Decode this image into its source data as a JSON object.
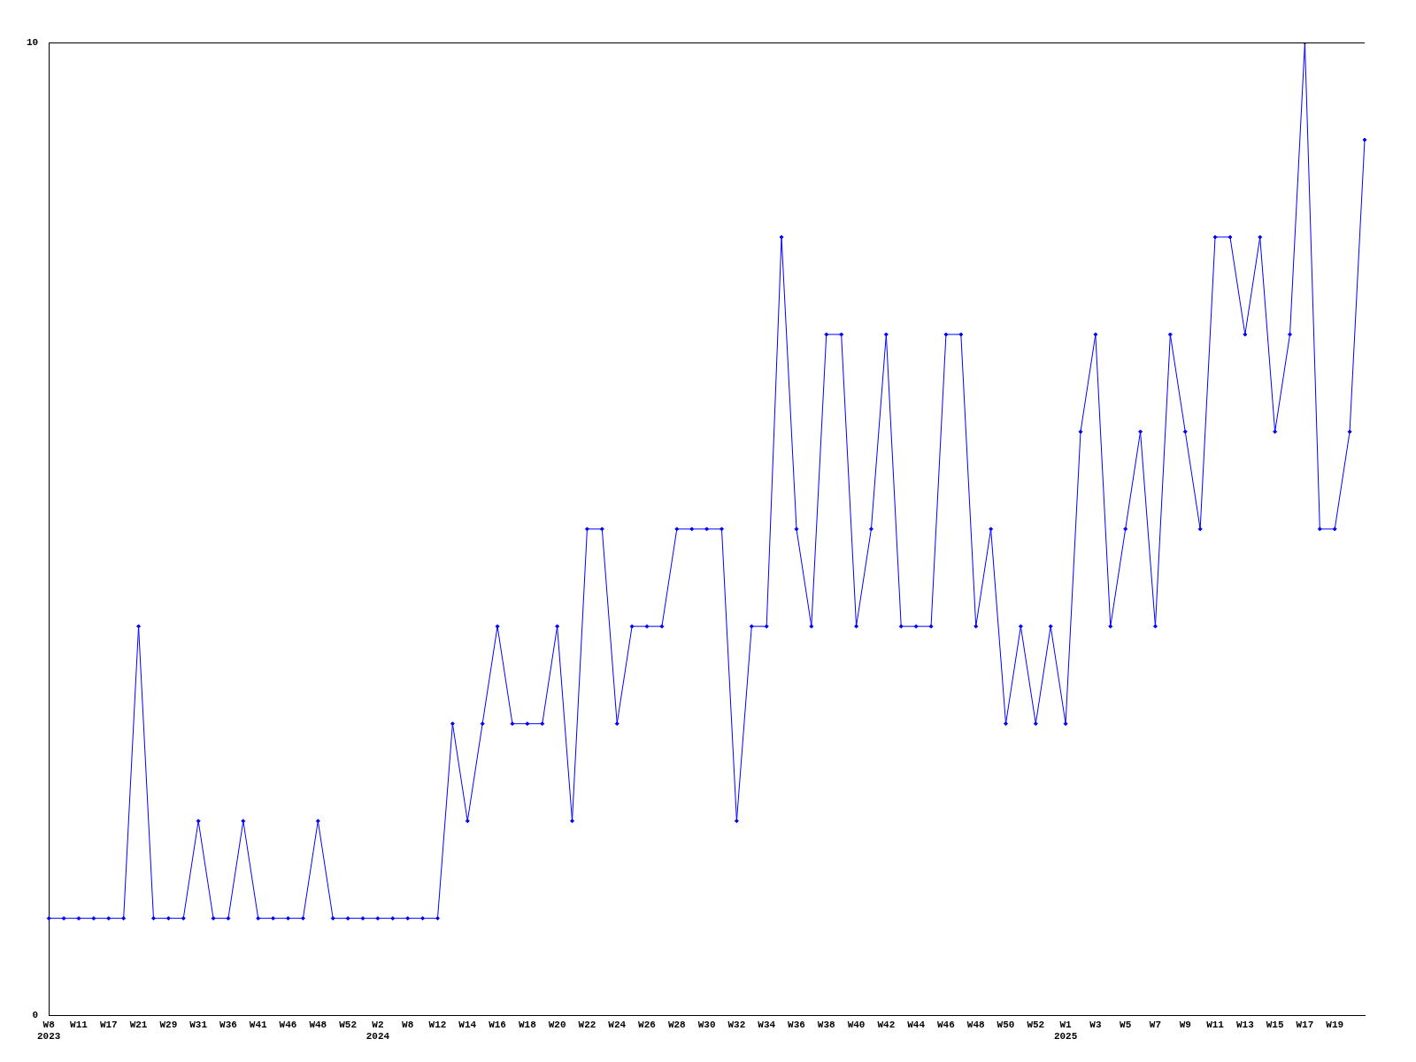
{
  "chart_data": {
    "type": "line",
    "categories": [
      "W8\n2023",
      null,
      "W11",
      null,
      "W17",
      null,
      "W21",
      null,
      "W29",
      null,
      "W31",
      null,
      "W36",
      null,
      "W41",
      null,
      "W46",
      null,
      "W48",
      null,
      "W52",
      null,
      "W2\n2024",
      null,
      "W8",
      null,
      "W12",
      null,
      "W14",
      null,
      "W16",
      null,
      "W18",
      null,
      "W20",
      null,
      "W22",
      null,
      "W24",
      null,
      "W26",
      null,
      "W28",
      null,
      "W30",
      null,
      "W32",
      null,
      "W34",
      null,
      "W36",
      null,
      "W38",
      null,
      "W40",
      null,
      "W42",
      null,
      "W44",
      null,
      "W46",
      null,
      "W48",
      null,
      "W50",
      null,
      "W52",
      null,
      "W1\n2025",
      null,
      "W3",
      null,
      "W5",
      null,
      "W7",
      null,
      "W9",
      null,
      "W11",
      null,
      "W13",
      null,
      "W15",
      null,
      "W17",
      null,
      "W19",
      null,
      null
    ],
    "series": [
      {
        "color": "#0000ff",
        "values": [
          1,
          1,
          1,
          1,
          1,
          1,
          4,
          1,
          1,
          1,
          2,
          1,
          1,
          2,
          1,
          1,
          1,
          1,
          2,
          1,
          1,
          1,
          1,
          1,
          1,
          1,
          1,
          3,
          2,
          3,
          4,
          3,
          3,
          3,
          4,
          2,
          5,
          5,
          3,
          4,
          4,
          4,
          5,
          5,
          5,
          5,
          2,
          4,
          4,
          8,
          5,
          4,
          7,
          7,
          4,
          5,
          7,
          4,
          4,
          4,
          7,
          7,
          4,
          5,
          3,
          4,
          3,
          4,
          3,
          6,
          7,
          4,
          5,
          6,
          4,
          7,
          6,
          5,
          8,
          8,
          7,
          8,
          6,
          7,
          10,
          5,
          5,
          6,
          9
        ]
      }
    ],
    "ylim": [
      0,
      10
    ],
    "yticks": [
      0,
      10
    ],
    "grid": false,
    "legend": false,
    "marker": "diamond",
    "line_style": "solid"
  }
}
